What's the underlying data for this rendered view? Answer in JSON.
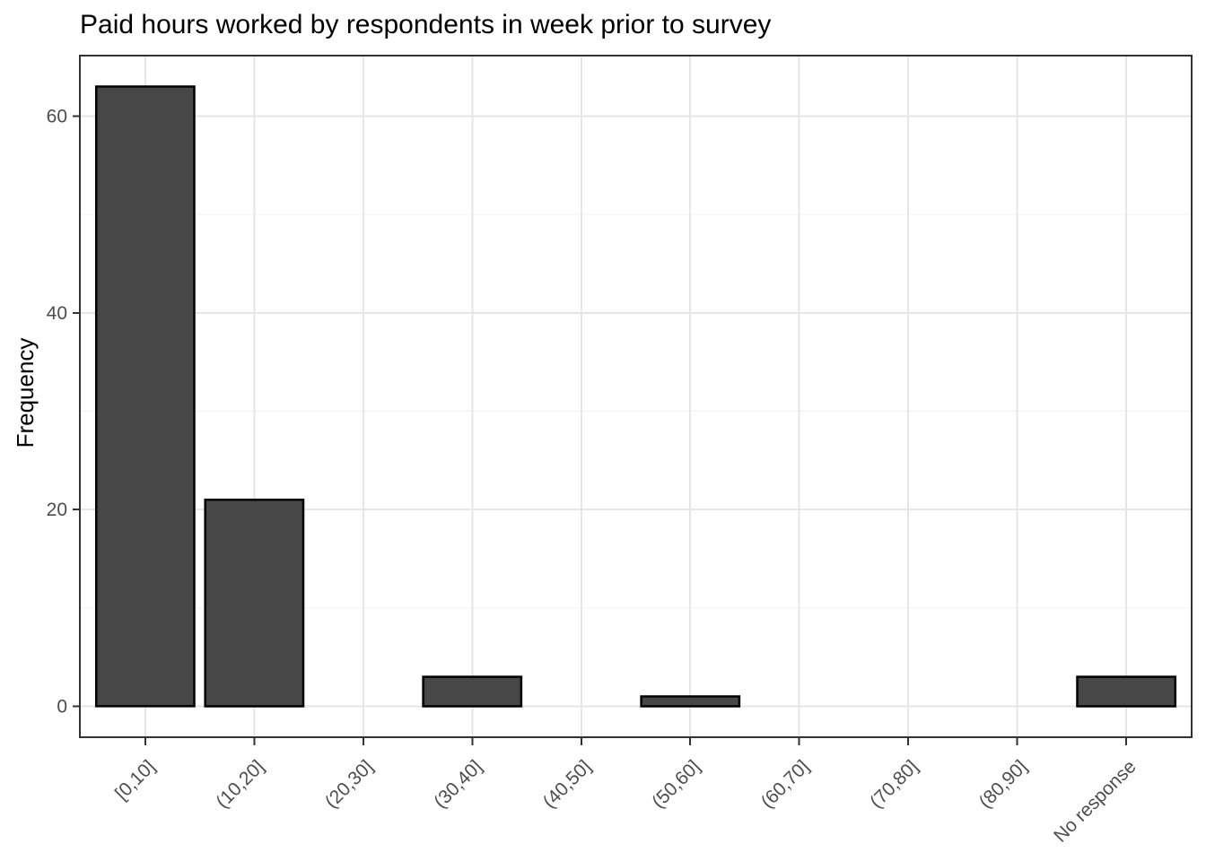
{
  "chart_data": {
    "type": "bar",
    "title": "Paid hours worked by respondents in week prior to survey",
    "xlabel": "",
    "ylabel": "Frequency",
    "categories": [
      "[0,10]",
      "(10,20]",
      "(20,30]",
      "(30,40]",
      "(40,50]",
      "(50,60]",
      "(60,70]",
      "(70,80]",
      "(80,90]",
      "No response"
    ],
    "values": [
      63,
      21,
      0,
      3,
      0,
      1,
      0,
      0,
      0,
      3
    ],
    "y_ticks": [
      0,
      20,
      40,
      60
    ],
    "y_minor_ticks": [
      10,
      30,
      50
    ],
    "ylim": [
      0,
      63
    ],
    "y_expand_mult": 0.05,
    "x_expand_add": 0.6,
    "bar_rel_width": 0.9,
    "x_tick_angle": 45,
    "grid": true,
    "legend": false,
    "colors": {
      "bar_fill": "#474747",
      "bar_stroke": "#000000",
      "grid_major": "#e6e6e6",
      "grid_minor": "#f1f1f1",
      "panel_border": "#333333",
      "tick_mark": "#333333",
      "tick_label": "#4d4d4d",
      "title": "#000000",
      "background": "#ffffff"
    }
  }
}
